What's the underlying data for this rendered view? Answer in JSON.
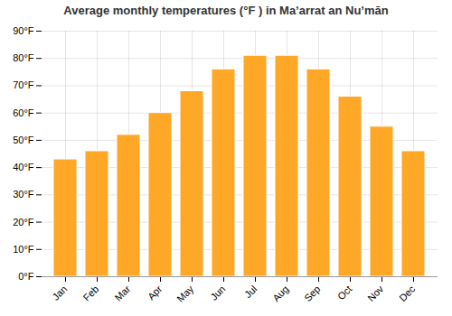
{
  "chart_data": {
    "type": "bar",
    "title": "Average monthly temperatures (°F ) in Maʼarrat an Nuʼmān",
    "categories": [
      "Jan",
      "Feb",
      "Mar",
      "Apr",
      "May",
      "Jun",
      "Jul",
      "Aug",
      "Sep",
      "Oct",
      "Nov",
      "Dec"
    ],
    "values": [
      43,
      46,
      52,
      60,
      68,
      76,
      81,
      81,
      76,
      66,
      55,
      46
    ],
    "color": "#FFA726",
    "ylim": [
      0,
      90
    ],
    "yticks": [
      {
        "value": 0,
        "label": "0°F"
      },
      {
        "value": 10,
        "label": "10°F"
      },
      {
        "value": 20,
        "label": "20°F"
      },
      {
        "value": 30,
        "label": "30°F"
      },
      {
        "value": 40,
        "label": "40°F"
      },
      {
        "value": 50,
        "label": "50°F"
      },
      {
        "value": 60,
        "label": "60°F"
      },
      {
        "value": 70,
        "label": "70°F"
      },
      {
        "value": 80,
        "label": "80°F"
      },
      {
        "value": 90,
        "label": "90°F"
      }
    ],
    "grid": true
  }
}
